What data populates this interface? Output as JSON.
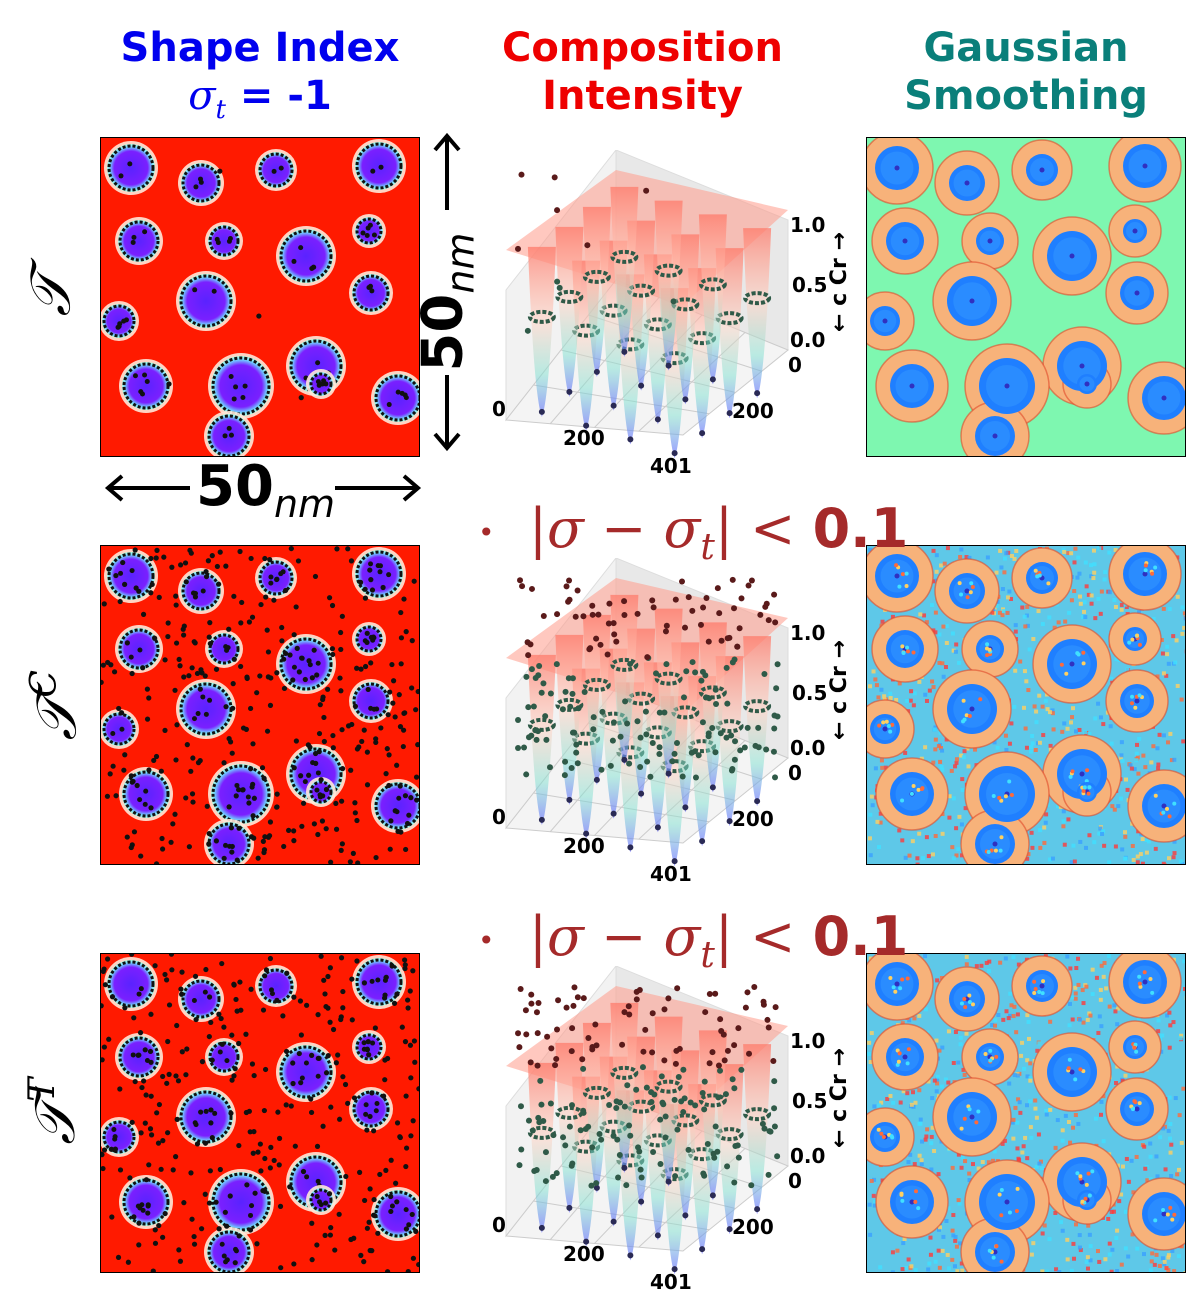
{
  "columns": {
    "shape_index": {
      "title": "Shape Index",
      "subtitle": "σt = -1",
      "color": "#0000ee"
    },
    "composition": {
      "title_line1": "Composition",
      "title_line2": "Intensity",
      "color": "#ee0000"
    },
    "gaussian": {
      "title_line1": "Gaussian",
      "title_line2": "Smoothing",
      "color": "#0a7f7a"
    }
  },
  "rows": [
    {
      "label": "𝒯",
      "sup": ""
    },
    {
      "label": "𝒯",
      "sup": "C"
    },
    {
      "label": "𝒯",
      "sup": "T"
    }
  ],
  "scale": {
    "horizontal": "50",
    "vertical": "50",
    "unit": "nm"
  },
  "criterion": {
    "text": "|σ − σt| < ",
    "value": "0.1",
    "color": "#a52a2a"
  },
  "plot3d": {
    "x_ticks": [
      "0",
      "200",
      "401"
    ],
    "y_ticks": [
      "0",
      "200"
    ],
    "z_ticks": [
      "0.0",
      "0.5",
      "1.0"
    ],
    "z_label": "← c Cr →"
  },
  "colors": {
    "matrix_red": "#ff1a00",
    "precipitate_violet": "#6a1fff",
    "smooth_orange": "#f7b27a",
    "smooth_green": "#7ef7b0",
    "smooth_blue": "#1f7fff"
  }
}
